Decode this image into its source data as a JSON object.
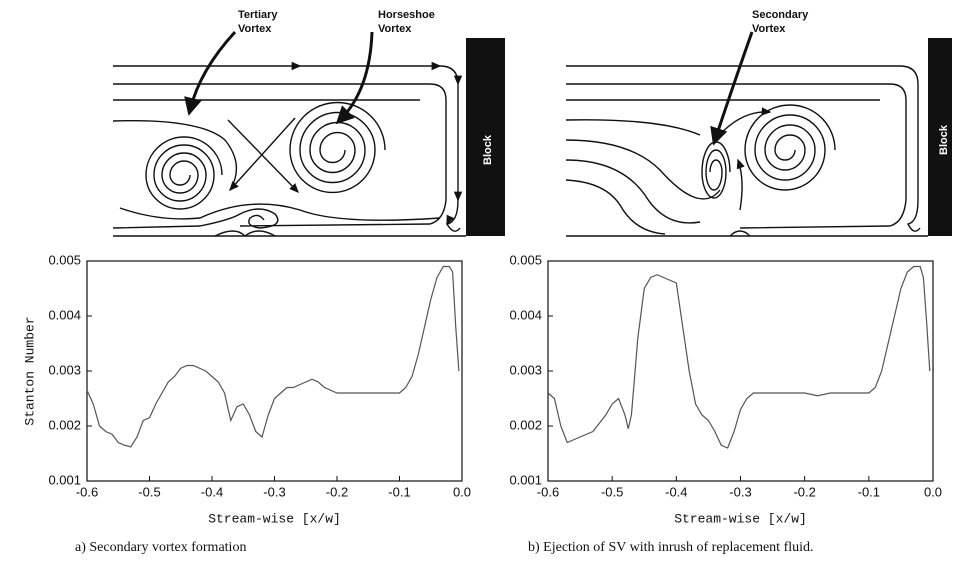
{
  "diagrams": [
    {
      "labels": [
        {
          "lines": [
            "Tertiary",
            "Vortex"
          ]
        },
        {
          "lines": [
            "Horseshoe",
            "Vortex"
          ]
        }
      ],
      "block": "Block"
    },
    {
      "labels": [
        {
          "lines": [
            "Secondary",
            "Vortex"
          ]
        }
      ],
      "block": "Block"
    }
  ],
  "chart_data": [
    {
      "type": "line",
      "caption": "a) Secondary vortex formation",
      "xlabel": "Stream-wise [x/w]",
      "ylabel": "Stanton Number",
      "xlim": [
        -0.6,
        0
      ],
      "ylim": [
        0.001,
        0.005
      ],
      "xticks": [
        -0.6,
        -0.5,
        -0.4,
        -0.3,
        -0.2,
        -0.1,
        {
          "value": 0,
          "label": "0.0"
        }
      ],
      "yticks": [
        0.001,
        0.002,
        0.003,
        0.004,
        0.005
      ],
      "color": "#555555",
      "x": [
        -0.6,
        -0.59,
        -0.58,
        -0.57,
        -0.56,
        -0.55,
        -0.54,
        -0.53,
        -0.52,
        -0.51,
        -0.5,
        -0.49,
        -0.48,
        -0.47,
        -0.46,
        -0.45,
        -0.44,
        -0.43,
        -0.42,
        -0.41,
        -0.4,
        -0.39,
        -0.38,
        -0.37,
        -0.36,
        -0.35,
        -0.34,
        -0.33,
        -0.32,
        -0.31,
        -0.3,
        -0.29,
        -0.28,
        -0.27,
        -0.26,
        -0.25,
        -0.24,
        -0.23,
        -0.22,
        -0.2,
        -0.18,
        -0.16,
        -0.14,
        -0.12,
        -0.1,
        -0.09,
        -0.08,
        -0.07,
        -0.06,
        -0.05,
        -0.04,
        -0.03,
        -0.02,
        -0.015,
        -0.01,
        -0.005
      ],
      "values": [
        0.00265,
        0.0024,
        0.002,
        0.0019,
        0.00185,
        0.0017,
        0.00165,
        0.00162,
        0.0018,
        0.0021,
        0.00215,
        0.0024,
        0.0026,
        0.0028,
        0.0029,
        0.00305,
        0.0031,
        0.0031,
        0.00305,
        0.003,
        0.0029,
        0.0028,
        0.0026,
        0.0021,
        0.00235,
        0.0024,
        0.0022,
        0.0019,
        0.0018,
        0.0022,
        0.0025,
        0.0026,
        0.0027,
        0.0027,
        0.00275,
        0.0028,
        0.00285,
        0.0028,
        0.0027,
        0.0026,
        0.0026,
        0.0026,
        0.0026,
        0.0026,
        0.0026,
        0.0027,
        0.0029,
        0.0033,
        0.0038,
        0.0043,
        0.0047,
        0.0049,
        0.0049,
        0.0048,
        0.0038,
        0.003
      ]
    },
    {
      "type": "line",
      "caption": "b) Ejection of SV with inrush of replacement fluid.",
      "xlabel": "Stream-wise [x/w]",
      "xlim": [
        -0.6,
        0
      ],
      "ylim": [
        0.001,
        0.005
      ],
      "xticks": [
        -0.6,
        -0.5,
        -0.4,
        -0.3,
        -0.2,
        -0.1,
        {
          "value": 0,
          "label": "0.0"
        }
      ],
      "yticks": [
        0.001,
        0.002,
        0.003,
        0.004,
        0.005
      ],
      "color": "#555555",
      "x": [
        -0.6,
        -0.59,
        -0.58,
        -0.57,
        -0.56,
        -0.55,
        -0.53,
        -0.51,
        -0.5,
        -0.49,
        -0.48,
        -0.475,
        -0.47,
        -0.46,
        -0.45,
        -0.44,
        -0.43,
        -0.42,
        -0.41,
        -0.4,
        -0.39,
        -0.38,
        -0.37,
        -0.36,
        -0.35,
        -0.34,
        -0.33,
        -0.32,
        -0.31,
        -0.3,
        -0.29,
        -0.28,
        -0.26,
        -0.24,
        -0.22,
        -0.2,
        -0.18,
        -0.16,
        -0.14,
        -0.12,
        -0.1,
        -0.09,
        -0.08,
        -0.07,
        -0.06,
        -0.05,
        -0.04,
        -0.03,
        -0.02,
        -0.015,
        -0.01,
        -0.005
      ],
      "values": [
        0.0026,
        0.0025,
        0.002,
        0.0017,
        0.00175,
        0.0018,
        0.0019,
        0.0022,
        0.0024,
        0.0025,
        0.0022,
        0.00195,
        0.0022,
        0.0036,
        0.0045,
        0.0047,
        0.00475,
        0.0047,
        0.00465,
        0.0046,
        0.0038,
        0.003,
        0.0024,
        0.0022,
        0.0021,
        0.0019,
        0.00165,
        0.0016,
        0.0019,
        0.0023,
        0.0025,
        0.0026,
        0.0026,
        0.0026,
        0.0026,
        0.0026,
        0.00255,
        0.0026,
        0.0026,
        0.0026,
        0.0026,
        0.0027,
        0.003,
        0.0035,
        0.004,
        0.0045,
        0.0048,
        0.0049,
        0.0049,
        0.0047,
        0.0039,
        0.003
      ]
    }
  ]
}
